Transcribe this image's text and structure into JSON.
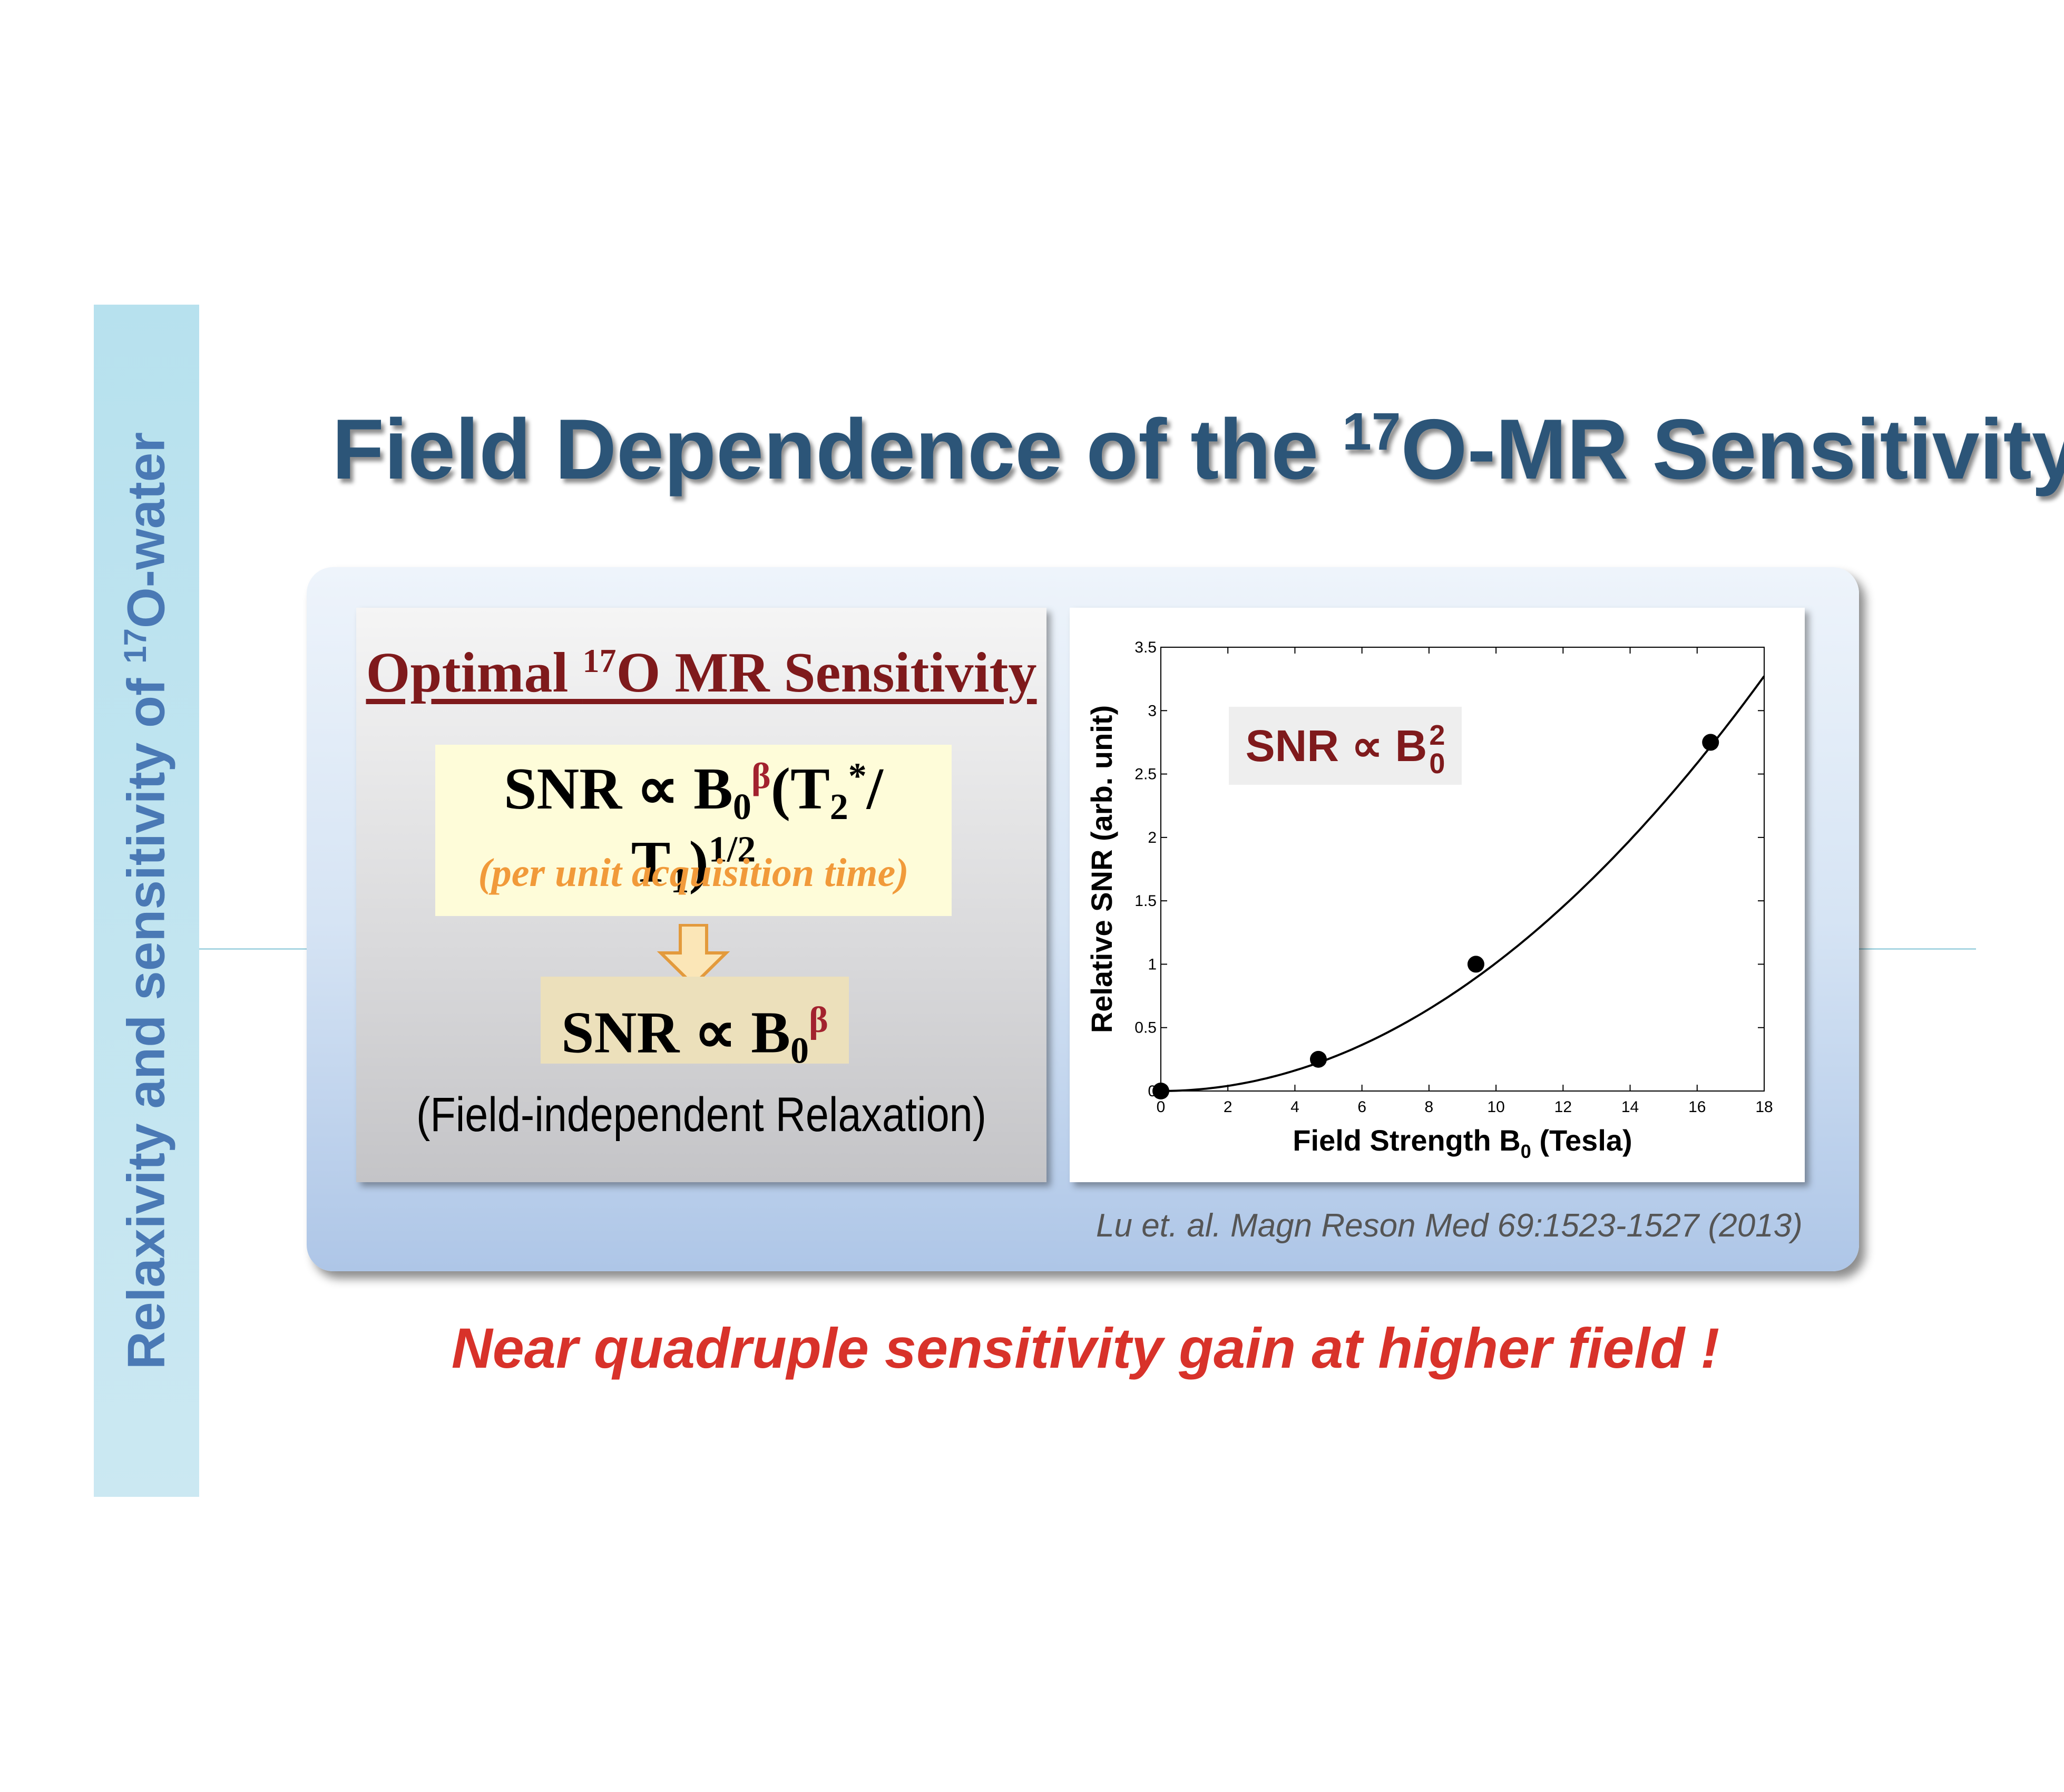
{
  "side_label": {
    "text": "Relaxivity and sensitivity of ",
    "sup": "17",
    "suffix": "O-water"
  },
  "title": {
    "prefix": "Field Dependence of the ",
    "sup": "17",
    "suffix": "O-MR Sensitivity"
  },
  "left_panel": {
    "heading": {
      "prefix": "Optimal ",
      "sup": "17",
      "suffix": "O MR Sensitivity"
    },
    "equation1": {
      "lhs": "SNR ∝ B",
      "sub0": "0",
      "beta": "β",
      "mid": "(T",
      "sub2": "2",
      "star": "*",
      "slash": "/ T",
      "sub1": "1",
      "close": ")",
      "exp": "1/2"
    },
    "note": "(per unit acquisition time)",
    "equation2": {
      "lhs": "SNR ∝ B",
      "sub0": "0",
      "beta": "β"
    },
    "relaxation_note": "(Field-independent Relaxation)"
  },
  "chart_data": {
    "type": "scatter",
    "x": [
      0,
      4.7,
      9.4,
      16.4
    ],
    "y": [
      0,
      0.25,
      1.0,
      2.75
    ],
    "fit": {
      "model": "y = a*x^2",
      "a": 0.0101
    },
    "xlabel": "Field Strength B",
    "xlabel_sub": "0",
    "xlabel_suffix": " (Tesla)",
    "ylabel": "Relative SNR (arb. unit)",
    "xlim": [
      0,
      18
    ],
    "ylim": [
      0,
      3.5
    ],
    "xticks": [
      "0",
      "2",
      "4",
      "6",
      "8",
      "10",
      "12",
      "14",
      "16",
      "18"
    ],
    "yticks": [
      "0",
      "0.5",
      "1",
      "1.5",
      "2",
      "2.5",
      "3",
      "3.5"
    ],
    "annotation": {
      "text": "SNR ∝ B",
      "sup": "2",
      "sub": "0"
    },
    "grid": false
  },
  "citation": "Lu et. al. Magn Reson Med 69:1523-1527 (2013)",
  "tagline": "Near quadruple sensitivity gain at higher field !",
  "colors": {
    "title": "#2c5578",
    "side_label": "#4a79b5",
    "heading_red": "#7f1a1c",
    "note_orange": "#f19a3a",
    "tagline_red": "#d8322a"
  }
}
